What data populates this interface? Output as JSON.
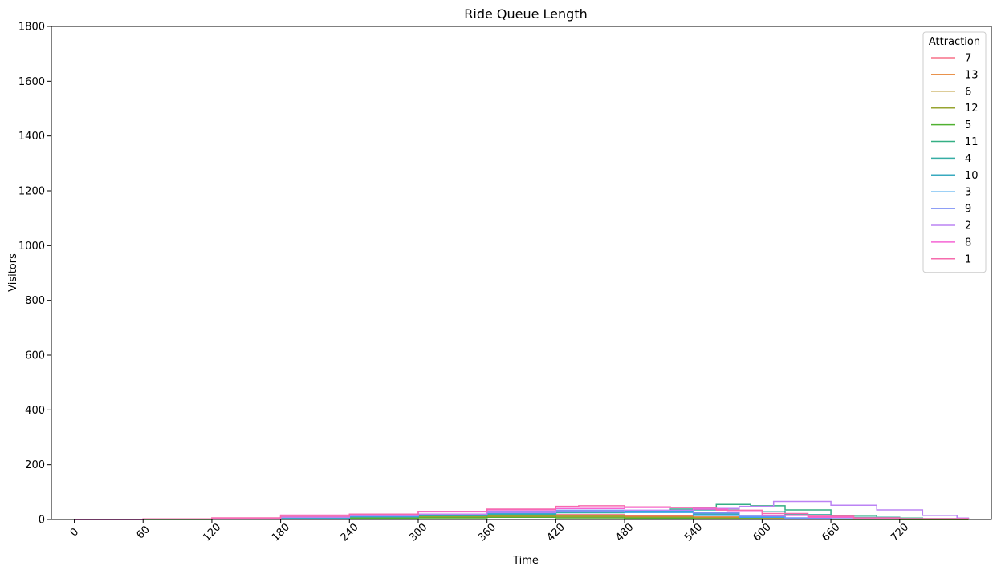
{
  "chart_data": {
    "type": "line",
    "title": "Ride Queue Length",
    "xlabel": "Time",
    "ylabel": "Visitors",
    "xlim": [
      -20,
      800
    ],
    "ylim": [
      0,
      1800
    ],
    "xticks": [
      0,
      60,
      120,
      180,
      240,
      300,
      360,
      420,
      480,
      540,
      600,
      660,
      720
    ],
    "yticks": [
      0,
      200,
      400,
      600,
      800,
      1000,
      1200,
      1400,
      1600,
      1800
    ],
    "grid": false,
    "legend": {
      "title": "Attraction",
      "position": "top-right"
    },
    "series": [
      {
        "name": "7",
        "color": "#f77189",
        "points": [
          [
            0,
            0
          ],
          [
            60,
            1
          ],
          [
            120,
            3
          ],
          [
            180,
            6
          ],
          [
            240,
            9
          ],
          [
            300,
            12
          ],
          [
            360,
            15
          ],
          [
            420,
            18
          ],
          [
            480,
            14
          ],
          [
            540,
            8
          ],
          [
            600,
            3
          ],
          [
            660,
            1
          ],
          [
            720,
            0
          ],
          [
            780,
            0
          ]
        ]
      },
      {
        "name": "13",
        "color": "#e68332",
        "points": [
          [
            0,
            0
          ],
          [
            60,
            1
          ],
          [
            120,
            2
          ],
          [
            180,
            4
          ],
          [
            240,
            6
          ],
          [
            300,
            8
          ],
          [
            360,
            10
          ],
          [
            420,
            12
          ],
          [
            480,
            11
          ],
          [
            540,
            9
          ],
          [
            600,
            5
          ],
          [
            660,
            2
          ],
          [
            720,
            1
          ],
          [
            780,
            0
          ]
        ]
      },
      {
        "name": "6",
        "color": "#bb9832",
        "points": [
          [
            0,
            0
          ],
          [
            60,
            1
          ],
          [
            120,
            2
          ],
          [
            180,
            5
          ],
          [
            240,
            8
          ],
          [
            300,
            12
          ],
          [
            360,
            18
          ],
          [
            390,
            20
          ],
          [
            420,
            10
          ],
          [
            480,
            6
          ],
          [
            540,
            4
          ],
          [
            600,
            2
          ],
          [
            660,
            1
          ],
          [
            720,
            0
          ],
          [
            780,
            0
          ]
        ]
      },
      {
        "name": "12",
        "color": "#97a431",
        "points": [
          [
            0,
            0
          ],
          [
            60,
            1
          ],
          [
            120,
            2
          ],
          [
            180,
            4
          ],
          [
            240,
            7
          ],
          [
            300,
            10
          ],
          [
            360,
            14
          ],
          [
            420,
            12
          ],
          [
            480,
            8
          ],
          [
            540,
            5
          ],
          [
            600,
            3
          ],
          [
            660,
            1
          ],
          [
            720,
            0
          ],
          [
            780,
            0
          ]
        ]
      },
      {
        "name": "5",
        "color": "#50b131",
        "points": [
          [
            0,
            0
          ],
          [
            60,
            0
          ],
          [
            120,
            1
          ],
          [
            180,
            2
          ],
          [
            240,
            4
          ],
          [
            300,
            6
          ],
          [
            360,
            8
          ],
          [
            420,
            6
          ],
          [
            480,
            4
          ],
          [
            540,
            2
          ],
          [
            600,
            1
          ],
          [
            660,
            0
          ],
          [
            720,
            0
          ],
          [
            780,
            0
          ]
        ]
      },
      {
        "name": "11",
        "color": "#34af84",
        "points": [
          [
            0,
            0
          ],
          [
            60,
            1
          ],
          [
            120,
            2
          ],
          [
            180,
            5
          ],
          [
            240,
            9
          ],
          [
            300,
            14
          ],
          [
            360,
            20
          ],
          [
            420,
            26
          ],
          [
            480,
            32
          ],
          [
            520,
            38
          ],
          [
            560,
            55
          ],
          [
            590,
            50
          ],
          [
            620,
            35
          ],
          [
            660,
            15
          ],
          [
            700,
            5
          ],
          [
            740,
            2
          ],
          [
            780,
            0
          ]
        ]
      },
      {
        "name": "4",
        "color": "#36ada4",
        "points": [
          [
            0,
            0
          ],
          [
            60,
            1
          ],
          [
            120,
            3
          ],
          [
            180,
            6
          ],
          [
            240,
            10
          ],
          [
            300,
            15
          ],
          [
            360,
            20
          ],
          [
            420,
            25
          ],
          [
            480,
            30
          ],
          [
            540,
            35
          ],
          [
            580,
            30
          ],
          [
            620,
            18
          ],
          [
            660,
            8
          ],
          [
            720,
            3
          ],
          [
            780,
            0
          ]
        ]
      },
      {
        "name": "10",
        "color": "#38aabf",
        "points": [
          [
            0,
            0
          ],
          [
            60,
            1
          ],
          [
            120,
            3
          ],
          [
            180,
            6
          ],
          [
            240,
            10
          ],
          [
            300,
            16
          ],
          [
            360,
            22
          ],
          [
            420,
            28
          ],
          [
            480,
            30
          ],
          [
            540,
            20
          ],
          [
            580,
            10
          ],
          [
            620,
            5
          ],
          [
            660,
            2
          ],
          [
            720,
            1
          ],
          [
            780,
            0
          ]
        ]
      },
      {
        "name": "3",
        "color": "#3ba3ec",
        "points": [
          [
            0,
            0
          ],
          [
            60,
            1
          ],
          [
            120,
            3
          ],
          [
            180,
            7
          ],
          [
            240,
            12
          ],
          [
            300,
            18
          ],
          [
            360,
            24
          ],
          [
            420,
            28
          ],
          [
            480,
            26
          ],
          [
            540,
            15
          ],
          [
            580,
            8
          ],
          [
            620,
            4
          ],
          [
            660,
            2
          ],
          [
            720,
            1
          ],
          [
            780,
            5
          ]
        ]
      },
      {
        "name": "9",
        "color": "#7e91f4",
        "points": [
          [
            0,
            0
          ],
          [
            60,
            1
          ],
          [
            120,
            4
          ],
          [
            180,
            8
          ],
          [
            240,
            14
          ],
          [
            300,
            20
          ],
          [
            360,
            28
          ],
          [
            420,
            34
          ],
          [
            480,
            32
          ],
          [
            540,
            24
          ],
          [
            580,
            12
          ],
          [
            620,
            6
          ],
          [
            660,
            3
          ],
          [
            720,
            1
          ],
          [
            780,
            0
          ]
        ]
      },
      {
        "name": "2",
        "color": "#bb83f4",
        "points": [
          [
            0,
            0
          ],
          [
            60,
            1
          ],
          [
            120,
            3
          ],
          [
            180,
            8
          ],
          [
            240,
            14
          ],
          [
            300,
            20
          ],
          [
            360,
            26
          ],
          [
            420,
            30
          ],
          [
            480,
            34
          ],
          [
            540,
            40
          ],
          [
            580,
            48
          ],
          [
            610,
            66
          ],
          [
            630,
            66
          ],
          [
            660,
            52
          ],
          [
            700,
            35
          ],
          [
            740,
            15
          ],
          [
            770,
            5
          ],
          [
            780,
            3
          ]
        ]
      },
      {
        "name": "8",
        "color": "#f564d4",
        "points": [
          [
            0,
            0
          ],
          [
            60,
            2
          ],
          [
            120,
            5
          ],
          [
            180,
            16
          ],
          [
            240,
            18
          ],
          [
            300,
            28
          ],
          [
            360,
            35
          ],
          [
            420,
            40
          ],
          [
            480,
            44
          ],
          [
            540,
            38
          ],
          [
            570,
            30
          ],
          [
            600,
            15
          ],
          [
            640,
            8
          ],
          [
            680,
            4
          ],
          [
            720,
            2
          ],
          [
            780,
            0
          ]
        ]
      },
      {
        "name": "1",
        "color": "#f66bad",
        "points": [
          [
            0,
            0
          ],
          [
            60,
            2
          ],
          [
            120,
            6
          ],
          [
            180,
            12
          ],
          [
            240,
            20
          ],
          [
            300,
            30
          ],
          [
            360,
            38
          ],
          [
            420,
            48
          ],
          [
            440,
            50
          ],
          [
            480,
            46
          ],
          [
            520,
            44
          ],
          [
            560,
            34
          ],
          [
            600,
            22
          ],
          [
            640,
            12
          ],
          [
            680,
            6
          ],
          [
            720,
            3
          ],
          [
            780,
            0
          ]
        ]
      }
    ]
  }
}
